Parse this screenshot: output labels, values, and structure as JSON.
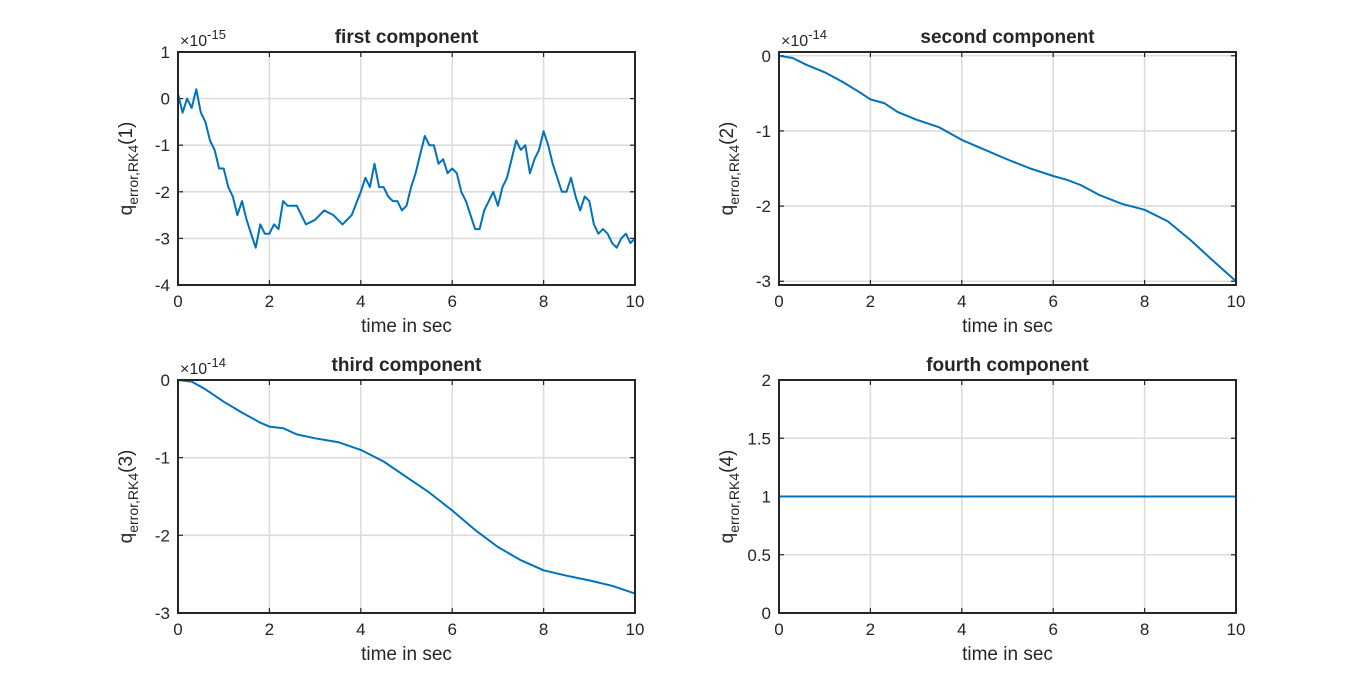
{
  "colors": {
    "series": "#0072BD",
    "axes": "#262626",
    "grid": "#dcdcdc",
    "background": "#ffffff"
  },
  "chart_data": [
    {
      "type": "line",
      "title": "first component",
      "xlabel": "time in sec",
      "ylabel": {
        "main": "q",
        "sub": "error,RK4",
        "suffix": "(1)"
      },
      "multiplier": {
        "prefix": "×10",
        "exponent": "-15"
      },
      "xlim": [
        0,
        10
      ],
      "ylim": [
        -4,
        1
      ],
      "xticks": [
        "0",
        "2",
        "4",
        "6",
        "8",
        "10"
      ],
      "yticks": [
        "1",
        "0",
        "-1",
        "-2",
        "-3",
        "-4"
      ],
      "grid": true,
      "series": [
        {
          "x": [
            0,
            0.1,
            0.2,
            0.3,
            0.4,
            0.5,
            0.6,
            0.7,
            0.8,
            0.9,
            1.0,
            1.1,
            1.2,
            1.3,
            1.4,
            1.5,
            1.6,
            1.7,
            1.8,
            1.9,
            2.0,
            2.1,
            2.2,
            2.3,
            2.4,
            2.6,
            2.8,
            3.0,
            3.2,
            3.4,
            3.6,
            3.8,
            4.0,
            4.1,
            4.2,
            4.3,
            4.4,
            4.5,
            4.6,
            4.7,
            4.8,
            4.9,
            5.0,
            5.1,
            5.2,
            5.3,
            5.4,
            5.5,
            5.6,
            5.7,
            5.8,
            5.9,
            6.0,
            6.1,
            6.2,
            6.3,
            6.4,
            6.5,
            6.6,
            6.7,
            6.8,
            6.9,
            7.0,
            7.1,
            7.2,
            7.3,
            7.4,
            7.5,
            7.6,
            7.7,
            7.8,
            7.9,
            8.0,
            8.1,
            8.2,
            8.3,
            8.4,
            8.5,
            8.6,
            8.7,
            8.8,
            8.9,
            9.0,
            9.1,
            9.2,
            9.3,
            9.4,
            9.5,
            9.6,
            9.7,
            9.8,
            9.9,
            10.0
          ],
          "y": [
            0.1,
            -0.3,
            0.0,
            -0.2,
            0.2,
            -0.3,
            -0.5,
            -0.9,
            -1.1,
            -1.5,
            -1.5,
            -1.9,
            -2.1,
            -2.5,
            -2.2,
            -2.6,
            -2.9,
            -3.2,
            -2.7,
            -2.9,
            -2.9,
            -2.7,
            -2.8,
            -2.2,
            -2.3,
            -2.3,
            -2.7,
            -2.6,
            -2.4,
            -2.5,
            -2.7,
            -2.5,
            -2.0,
            -1.7,
            -1.9,
            -1.4,
            -1.9,
            -1.9,
            -2.1,
            -2.2,
            -2.2,
            -2.4,
            -2.3,
            -1.9,
            -1.6,
            -1.2,
            -0.8,
            -1.0,
            -1.0,
            -1.4,
            -1.3,
            -1.6,
            -1.5,
            -1.6,
            -2.0,
            -2.2,
            -2.5,
            -2.8,
            -2.8,
            -2.4,
            -2.2,
            -2.0,
            -2.3,
            -1.9,
            -1.7,
            -1.3,
            -0.9,
            -1.1,
            -1.0,
            -1.6,
            -1.3,
            -1.1,
            -0.7,
            -1.0,
            -1.4,
            -1.7,
            -2.0,
            -2.0,
            -1.7,
            -2.1,
            -2.4,
            -2.1,
            -2.2,
            -2.7,
            -2.9,
            -2.8,
            -2.9,
            -3.1,
            -3.2,
            -3.0,
            -2.9,
            -3.1,
            -3.0
          ]
        }
      ]
    },
    {
      "type": "line",
      "title": "second component",
      "xlabel": "time in sec",
      "ylabel": {
        "main": "q",
        "sub": "error,RK4",
        "suffix": "(2)"
      },
      "multiplier": {
        "prefix": "×10",
        "exponent": "-14"
      },
      "xlim": [
        0,
        10
      ],
      "ylim": [
        -3.05,
        0.05
      ],
      "xticks": [
        "0",
        "2",
        "4",
        "6",
        "8",
        "10"
      ],
      "yticks": [
        "0",
        "-1",
        "-2",
        "-3"
      ],
      "grid": true,
      "series": [
        {
          "x": [
            0,
            0.3,
            0.6,
            1.0,
            1.4,
            1.8,
            2.0,
            2.3,
            2.6,
            3.0,
            3.5,
            4.0,
            4.5,
            5.0,
            5.5,
            6.0,
            6.3,
            6.6,
            7.0,
            7.5,
            8.0,
            8.5,
            9.0,
            9.5,
            10.0
          ],
          "y": [
            0,
            -0.03,
            -0.12,
            -0.22,
            -0.35,
            -0.5,
            -0.58,
            -0.63,
            -0.75,
            -0.85,
            -0.95,
            -1.12,
            -1.25,
            -1.38,
            -1.5,
            -1.6,
            -1.65,
            -1.72,
            -1.85,
            -1.97,
            -2.05,
            -2.2,
            -2.45,
            -2.73,
            -3.0
          ]
        }
      ]
    },
    {
      "type": "line",
      "title": "third component",
      "xlabel": "time in sec",
      "ylabel": {
        "main": "q",
        "sub": "error,RK4",
        "suffix": "(3)"
      },
      "multiplier": {
        "prefix": "×10",
        "exponent": "-14"
      },
      "xlim": [
        0,
        10
      ],
      "ylim": [
        -3,
        0
      ],
      "xticks": [
        "0",
        "2",
        "4",
        "6",
        "8",
        "10"
      ],
      "yticks": [
        "0",
        "-1",
        "-2",
        "-3"
      ],
      "grid": true,
      "series": [
        {
          "x": [
            0,
            0.3,
            0.6,
            1.0,
            1.4,
            1.8,
            2.0,
            2.3,
            2.6,
            3.0,
            3.5,
            4.0,
            4.5,
            5.0,
            5.5,
            6.0,
            6.5,
            7.0,
            7.5,
            8.0,
            8.5,
            9.0,
            9.5,
            10.0
          ],
          "y": [
            0,
            -0.02,
            -0.12,
            -0.28,
            -0.42,
            -0.55,
            -0.6,
            -0.62,
            -0.7,
            -0.75,
            -0.8,
            -0.9,
            -1.05,
            -1.25,
            -1.45,
            -1.68,
            -1.93,
            -2.15,
            -2.32,
            -2.45,
            -2.52,
            -2.58,
            -2.65,
            -2.75
          ]
        }
      ]
    },
    {
      "type": "line",
      "title": "fourth component",
      "xlabel": "time in sec",
      "ylabel": {
        "main": "q",
        "sub": "error,RK4",
        "suffix": "(4)"
      },
      "multiplier": null,
      "xlim": [
        0,
        10
      ],
      "ylim": [
        0,
        2
      ],
      "xticks": [
        "0",
        "2",
        "4",
        "6",
        "8",
        "10"
      ],
      "yticks": [
        "2",
        "1.5",
        "1",
        "0.5",
        "0"
      ],
      "grid": true,
      "series": [
        {
          "x": [
            0,
            10
          ],
          "y": [
            1,
            1
          ]
        }
      ]
    }
  ]
}
